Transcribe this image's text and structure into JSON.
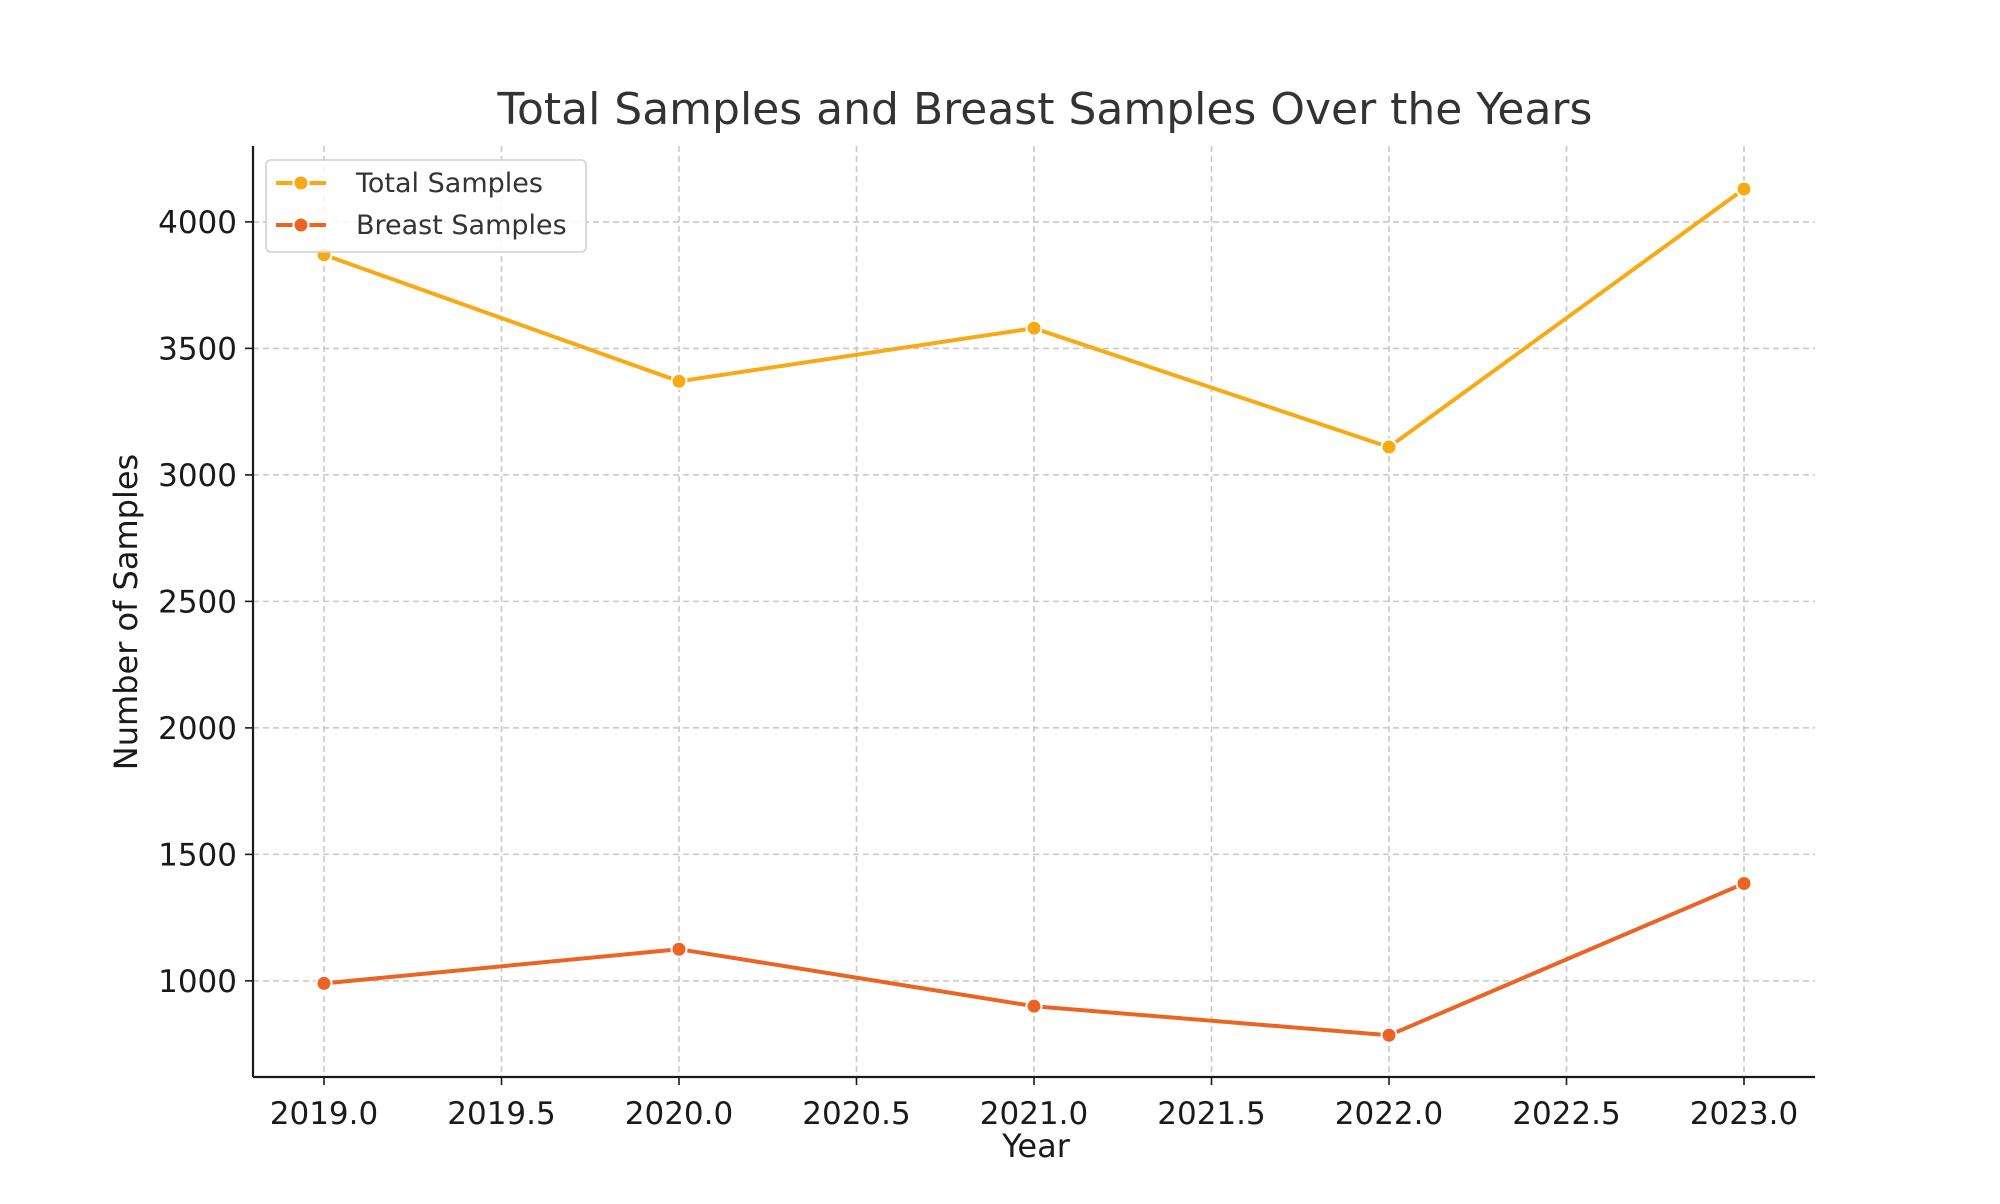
{
  "chart_data": {
    "type": "line",
    "title": "Total Samples and Breast Samples Over the Years",
    "xlabel": "Year",
    "ylabel": "Number of Samples",
    "x": [
      2019,
      2020,
      2021,
      2022,
      2023
    ],
    "xlim": [
      2018.8,
      2023.2
    ],
    "ylim": [
      620,
      4300
    ],
    "x_ticks": [
      2019.0,
      2019.5,
      2020.0,
      2020.5,
      2021.0,
      2021.5,
      2022.0,
      2022.5,
      2023.0
    ],
    "x_tick_labels": [
      "2019.0",
      "2019.5",
      "2020.0",
      "2020.5",
      "2021.0",
      "2021.5",
      "2022.0",
      "2022.5",
      "2023.0"
    ],
    "y_ticks": [
      1000,
      1500,
      2000,
      2500,
      3000,
      3500,
      4000
    ],
    "y_tick_labels": [
      "1000",
      "1500",
      "2000",
      "2500",
      "3000",
      "3500",
      "4000"
    ],
    "grid": true,
    "legend_position": "top-left",
    "series": [
      {
        "name": "Total Samples",
        "color": "#F7AA14",
        "values": [
          3870,
          3370,
          3580,
          3110,
          4130
        ]
      },
      {
        "name": "Breast Samples",
        "color": "#EB6423",
        "values": [
          990,
          1125,
          900,
          785,
          1385
        ]
      }
    ]
  }
}
